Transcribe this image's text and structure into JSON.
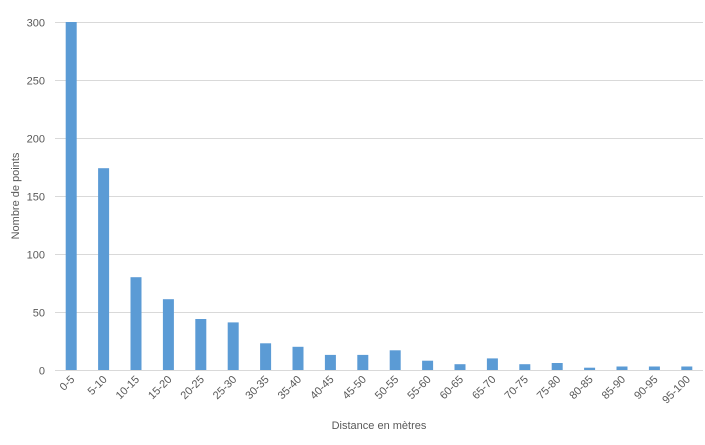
{
  "chart_data": {
    "type": "bar",
    "title": "",
    "xlabel": "Distance en mètres",
    "ylabel": "Nombre de points",
    "categories": [
      "0-5",
      "5-10",
      "10-15",
      "15-20",
      "20-25",
      "25-30",
      "30-35",
      "35-40",
      "40-45",
      "45-50",
      "50-55",
      "55-60",
      "60-65",
      "65-70",
      "70-75",
      "75-80",
      "80-85",
      "85-90",
      "90-95",
      "95-100"
    ],
    "values": [
      300,
      174,
      80,
      61,
      44,
      41,
      23,
      20,
      13,
      13,
      17,
      8,
      5,
      10,
      5,
      6,
      2,
      3,
      3,
      3
    ],
    "ylim": [
      0,
      300
    ],
    "yticks": [
      0,
      50,
      100,
      150,
      200,
      250,
      300
    ],
    "grid": true,
    "legend": null,
    "bar_color": "#5b9bd5",
    "grid_color": "#d9d9d9"
  }
}
